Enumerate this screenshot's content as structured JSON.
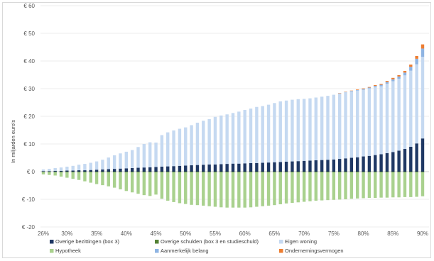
{
  "chart_data": {
    "type": "bar",
    "stacked": true,
    "title": "",
    "ylabel": "In miljarden euro's",
    "ylim": [
      -20,
      60
    ],
    "yticks": [
      -20,
      -10,
      0,
      10,
      20,
      30,
      40,
      50,
      60
    ],
    "ytick_labels": [
      "€ -20",
      "€ -10",
      "€ 0",
      "€ 10",
      "€ 20",
      "€ 30",
      "€ 40",
      "€ 50",
      "€ 60"
    ],
    "grid": true,
    "legend_position": "bottom",
    "x": [
      26,
      27,
      28,
      29,
      30,
      31,
      32,
      33,
      34,
      35,
      36,
      37,
      38,
      39,
      40,
      41,
      42,
      43,
      44,
      45,
      46,
      47,
      48,
      49,
      50,
      51,
      52,
      53,
      54,
      55,
      56,
      57,
      58,
      59,
      60,
      61,
      62,
      63,
      64,
      65,
      66,
      67,
      68,
      69,
      70,
      71,
      72,
      73,
      74,
      75,
      76,
      77,
      78,
      79,
      80,
      81,
      82,
      83,
      84,
      85,
      86,
      87,
      88,
      89,
      90
    ],
    "x_tick_labels": [
      "26%",
      "30%",
      "35%",
      "40%",
      "45%",
      "50%",
      "55%",
      "60%",
      "65%",
      "70%",
      "75%",
      "80%",
      "85%",
      "90%"
    ],
    "x_tick_values": [
      26,
      30,
      35,
      40,
      45,
      50,
      55,
      60,
      65,
      70,
      75,
      80,
      85,
      90
    ],
    "series": [
      {
        "name": "Overige bezittingen (box 3)",
        "color": "#1f3864",
        "values": [
          0.2,
          0.2,
          0.3,
          0.3,
          0.4,
          0.4,
          0.5,
          0.5,
          0.6,
          0.7,
          0.8,
          0.9,
          1.0,
          1.1,
          1.2,
          1.3,
          1.4,
          1.5,
          1.6,
          1.7,
          1.8,
          1.9,
          2.0,
          2.1,
          2.2,
          2.3,
          2.4,
          2.5,
          2.6,
          2.6,
          2.7,
          2.8,
          2.9,
          2.9,
          3.0,
          3.1,
          3.1,
          3.2,
          3.3,
          3.4,
          3.5,
          3.6,
          3.7,
          3.8,
          3.9,
          4.0,
          4.1,
          4.2,
          4.3,
          4.4,
          4.6,
          4.8,
          5.0,
          5.2,
          5.5,
          5.7,
          6.0,
          6.3,
          6.7,
          7.1,
          7.6,
          8.2,
          9.0,
          10.2,
          12.0
        ]
      },
      {
        "name": "Eigen woning",
        "color": "#c5d9f1",
        "values": [
          0.6,
          0.8,
          1.0,
          1.2,
          1.4,
          1.7,
          2.0,
          2.3,
          2.6,
          3.0,
          3.5,
          4.2,
          4.9,
          5.5,
          6.0,
          6.5,
          7.5,
          8.5,
          9.0,
          8.8,
          11.4,
          12.3,
          12.9,
          13.4,
          13.8,
          14.5,
          15.3,
          15.9,
          16.4,
          17.2,
          17.6,
          17.9,
          18.3,
          18.8,
          19.3,
          19.7,
          20.3,
          20.5,
          20.9,
          21.4,
          21.9,
          22.1,
          22.3,
          22.4,
          22.4,
          22.5,
          22.7,
          22.9,
          23.1,
          23.4,
          23.6,
          23.9,
          24.0,
          24.1,
          24.1,
          24.4,
          24.6,
          24.6,
          25.1,
          25.6,
          26.0,
          26.6,
          27.5,
          28.6,
          29.5
        ]
      },
      {
        "name": "Aanmerkelijk belang",
        "color": "#8eb4e3",
        "values": [
          0,
          0,
          0,
          0,
          0,
          0,
          0,
          0,
          0,
          0,
          0,
          0,
          0,
          0,
          0,
          0,
          0,
          0,
          0,
          0,
          0,
          0,
          0,
          0,
          0,
          0,
          0,
          0,
          0,
          0,
          0,
          0,
          0,
          0,
          0,
          0,
          0,
          0,
          0,
          0,
          0,
          0,
          0,
          0,
          0,
          0,
          0,
          0,
          0,
          0,
          0.1,
          0.1,
          0.2,
          0.2,
          0.3,
          0.3,
          0.4,
          0.5,
          0.6,
          0.7,
          0.8,
          1.0,
          1.4,
          2.0,
          3.0
        ]
      },
      {
        "name": "Ondernemingsvermogen",
        "color": "#ed7d31",
        "values": [
          0,
          0,
          0,
          0,
          0,
          0,
          0,
          0,
          0,
          0,
          0,
          0,
          0,
          0,
          0,
          0,
          0,
          0,
          0,
          0,
          0,
          0,
          0,
          0,
          0,
          0,
          0,
          0,
          0,
          0,
          0,
          0,
          0,
          0,
          0,
          0,
          0,
          0,
          0,
          0,
          0,
          0,
          0,
          0,
          0,
          0,
          0,
          0,
          0,
          0,
          0.1,
          0.1,
          0.1,
          0.2,
          0.2,
          0.2,
          0.3,
          0.3,
          0.4,
          0.5,
          0.5,
          0.6,
          0.8,
          1.0,
          1.5
        ]
      },
      {
        "name": "Overige schulden (box 3 en studieschuld)",
        "color": "#548235",
        "values": [
          -0.2,
          -0.2,
          -0.2,
          -0.3,
          -0.3,
          -0.3,
          -0.3,
          -0.3,
          -0.3,
          -0.3,
          -0.3,
          -0.3,
          -0.3,
          -0.3,
          -0.3,
          -0.3,
          -0.3,
          -0.3,
          -0.3,
          -0.3,
          -0.3,
          -0.3,
          -0.3,
          -0.3,
          -0.3,
          -0.3,
          -0.3,
          -0.3,
          -0.3,
          -0.3,
          -0.3,
          -0.3,
          -0.3,
          -0.3,
          -0.3,
          -0.3,
          -0.3,
          -0.3,
          -0.3,
          -0.3,
          -0.3,
          -0.3,
          -0.3,
          -0.3,
          -0.3,
          -0.3,
          -0.3,
          -0.3,
          -0.3,
          -0.3,
          -0.3,
          -0.3,
          -0.3,
          -0.3,
          -0.3,
          -0.3,
          -0.3,
          -0.3,
          -0.3,
          -0.3,
          -0.3,
          -0.3,
          -0.3,
          -0.3,
          -0.3
        ]
      },
      {
        "name": "Hypotheek",
        "color": "#a9d18e",
        "values": [
          -0.8,
          -1.0,
          -1.2,
          -1.5,
          -1.9,
          -2.3,
          -2.7,
          -3.2,
          -3.7,
          -4.2,
          -4.6,
          -5.0,
          -5.5,
          -6.1,
          -6.7,
          -7.2,
          -7.7,
          -8.2,
          -8.5,
          -8.0,
          -9.5,
          -10.2,
          -10.7,
          -11.1,
          -11.4,
          -11.7,
          -11.8,
          -12.0,
          -12.2,
          -12.4,
          -12.6,
          -12.7,
          -12.7,
          -12.7,
          -12.7,
          -12.6,
          -12.4,
          -12.2,
          -12.0,
          -11.8,
          -11.5,
          -11.2,
          -11.0,
          -10.8,
          -10.6,
          -10.4,
          -10.2,
          -10.1,
          -10.0,
          -9.9,
          -9.8,
          -9.7,
          -9.5,
          -9.4,
          -9.3,
          -9.2,
          -9.2,
          -9.1,
          -9.1,
          -9.0,
          -9.0,
          -8.9,
          -8.9,
          -8.8,
          -8.6
        ]
      }
    ],
    "legend_order": [
      "Overige bezittingen (box 3)",
      "Overige schulden (box 3 en studieschuld)",
      "Eigen woning",
      "Hypotheek",
      "Aanmerkelijk belang",
      "Ondernemingsvermogen"
    ]
  }
}
